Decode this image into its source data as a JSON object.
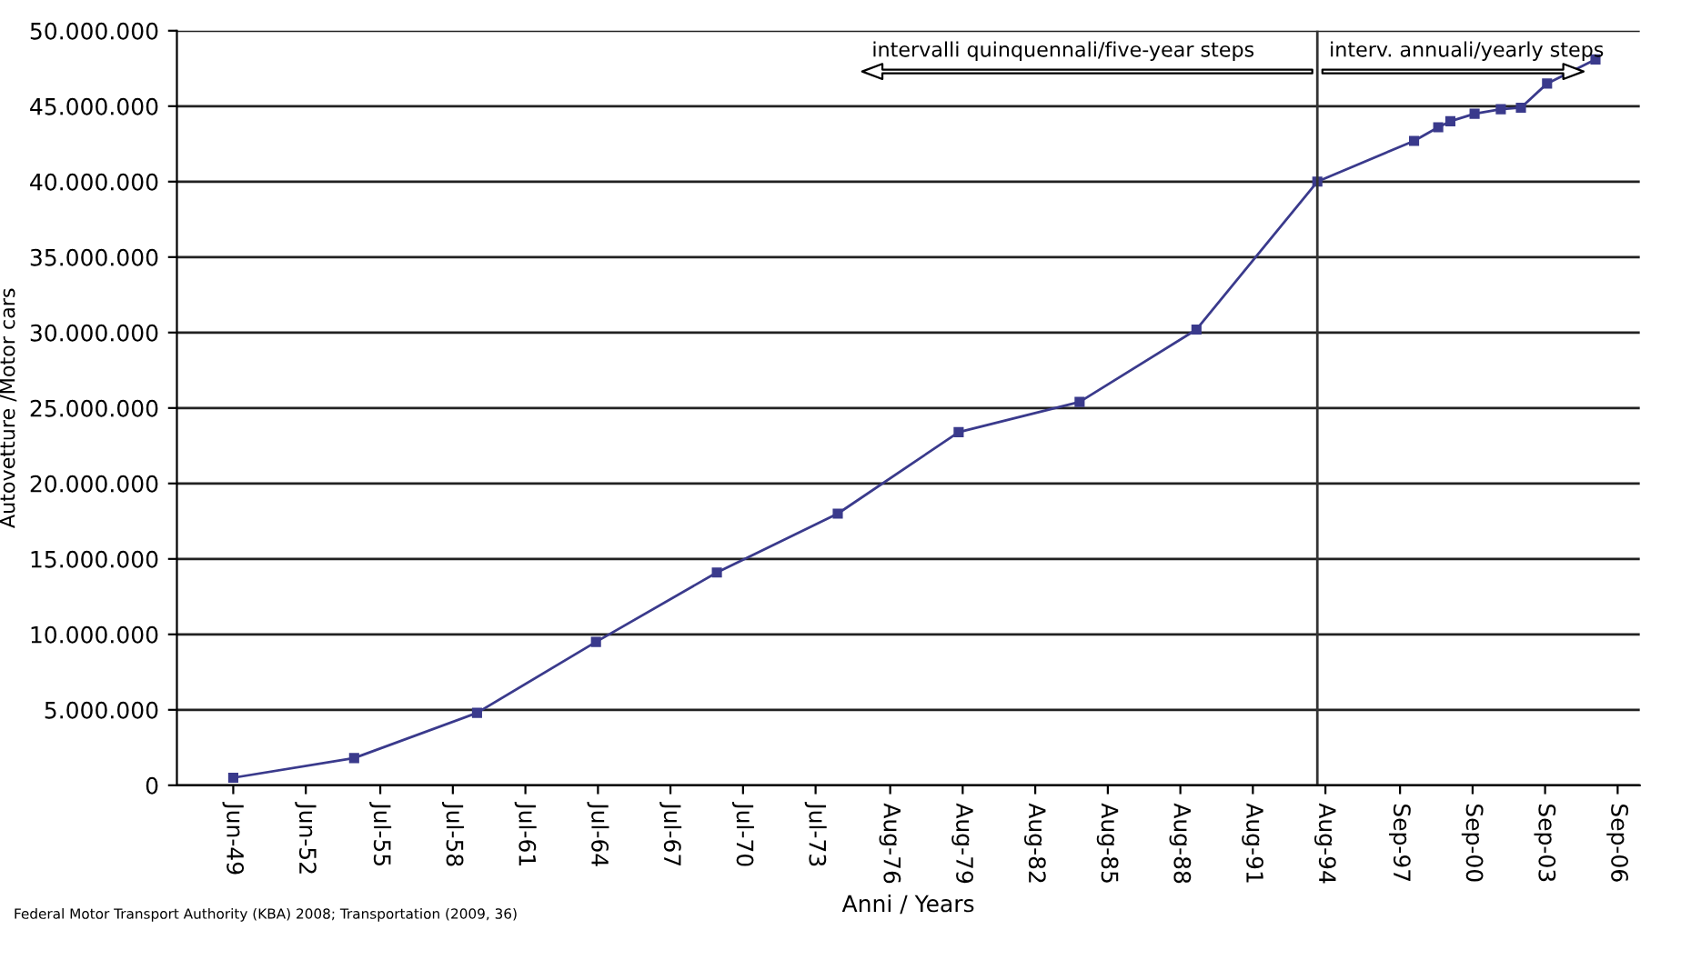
{
  "chart_data": {
    "type": "line",
    "x": [
      "1949-06",
      "1954-06",
      "1959-07",
      "1964-06",
      "1969-06",
      "1974-06",
      "1979-06",
      "1984-06",
      "1989-04",
      "1994-04",
      "1998-04",
      "1999-04",
      "1999-10",
      "2000-10",
      "2001-11",
      "2002-09",
      "2003-10",
      "2005-10"
    ],
    "series": [
      {
        "color": "#3a3a8c",
        "values": [
          500000,
          1800000,
          4800000,
          9500000,
          14100000,
          18000000,
          23400000,
          25400000,
          30200000,
          40000000,
          42700000,
          43600000,
          44000000,
          44500000,
          44800000,
          44900000,
          46500000,
          48100000
        ]
      }
    ],
    "marker": "square",
    "line_style": "solid",
    "grid": "y",
    "legend": false,
    "xlim": [
      "1947-02",
      "2007-08"
    ],
    "xticks": [
      {
        "value": "1949-06",
        "label": "Jun-49"
      },
      {
        "value": "1952-06",
        "label": "Jun-52"
      },
      {
        "value": "1955-07",
        "label": "Jul-55"
      },
      {
        "value": "1958-07",
        "label": "Jul-58"
      },
      {
        "value": "1961-07",
        "label": "Jul-61"
      },
      {
        "value": "1964-07",
        "label": "Jul-64"
      },
      {
        "value": "1967-07",
        "label": "Jul-67"
      },
      {
        "value": "1970-07",
        "label": "Jul-70"
      },
      {
        "value": "1973-07",
        "label": "Jul-73"
      },
      {
        "value": "1976-08",
        "label": "Aug-76"
      },
      {
        "value": "1979-08",
        "label": "Aug-79"
      },
      {
        "value": "1982-08",
        "label": "Aug-82"
      },
      {
        "value": "1985-08",
        "label": "Aug-85"
      },
      {
        "value": "1988-08",
        "label": "Aug-88"
      },
      {
        "value": "1991-08",
        "label": "Aug-91"
      },
      {
        "value": "1994-08",
        "label": "Aug-94"
      },
      {
        "value": "1997-09",
        "label": "Sep-97"
      },
      {
        "value": "2000-09",
        "label": "Sep-00"
      },
      {
        "value": "2003-09",
        "label": "Sep-03"
      },
      {
        "value": "2006-09",
        "label": "Sep-06"
      }
    ],
    "ylim": [
      0,
      50000000
    ],
    "yticks": [
      0,
      {
        "value": 5000000,
        "label": "5.000.000"
      },
      {
        "value": 10000000,
        "label": "10.000.000"
      },
      {
        "value": 15000000,
        "label": "15.000.000"
      },
      {
        "value": 20000000,
        "label": "20.000.000"
      },
      {
        "value": 25000000,
        "label": "25.000.000"
      },
      {
        "value": 30000000,
        "label": "30.000.000"
      },
      {
        "value": 35000000,
        "label": "35.000.000"
      },
      {
        "value": 40000000,
        "label": "40.000.000"
      },
      {
        "value": 45000000,
        "label": "45.000.000"
      },
      {
        "value": 50000000,
        "label": "50.000.000"
      }
    ],
    "xlabel": "Anni / Years",
    "ylabel": "Autovetture /Motor cars",
    "ref_lines": [
      {
        "axis": "x",
        "value": "1994-04",
        "color": "#333333"
      }
    ],
    "annotations": [
      "intervalli quinquennali/five-year steps",
      "interv. annuali/yearly steps",
      "Federal Motor Transport Authority (KBA) 2008; Transportation (2009, 36)"
    ]
  }
}
